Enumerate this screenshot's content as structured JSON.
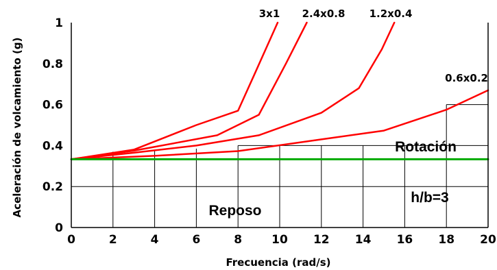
{
  "chart_data": {
    "type": "line",
    "title": "",
    "xlabel": "Frecuencia (rad/s)",
    "ylabel": "Aceleración de volcamiento (g)",
    "xlim": [
      0,
      20
    ],
    "ylim": [
      0,
      1
    ],
    "xticks": [
      0,
      2,
      4,
      6,
      8,
      10,
      12,
      14,
      16,
      18,
      20
    ],
    "yticks": [
      0,
      0.2,
      0.4,
      0.6,
      0.8,
      1
    ],
    "xtick_labels": [
      "0",
      "2",
      "4",
      "6",
      "8",
      "10",
      "12",
      "14",
      "16",
      "18",
      "20"
    ],
    "ytick_labels": [
      "0",
      "0.2",
      "0.4",
      "0.6",
      "0.8",
      "1"
    ],
    "grid": true,
    "series": [
      {
        "name": "3x1",
        "color": "#ff0000",
        "x": [
          0,
          3,
          6,
          8,
          8.8,
          9.9
        ],
        "y": [
          0.333,
          0.38,
          0.5,
          0.57,
          0.75,
          1.0
        ]
      },
      {
        "name": "2.4x0.8",
        "color": "#ff0000",
        "x": [
          0,
          3,
          7,
          9,
          10.3,
          11.3
        ],
        "y": [
          0.333,
          0.375,
          0.45,
          0.55,
          0.8,
          1.0
        ]
      },
      {
        "name": "1.2x0.4",
        "color": "#ff0000",
        "x": [
          0,
          3,
          6,
          9,
          12,
          13.8,
          14.9,
          15.5
        ],
        "y": [
          0.333,
          0.365,
          0.4,
          0.45,
          0.56,
          0.68,
          0.87,
          1.0
        ]
      },
      {
        "name": "0.6x0.2",
        "color": "#ff0000",
        "x": [
          0,
          4,
          8,
          12,
          15,
          18,
          20
        ],
        "y": [
          0.333,
          0.35,
          0.373,
          0.43,
          0.473,
          0.575,
          0.67
        ]
      },
      {
        "name": "",
        "color": "#00aa00",
        "x": [
          0,
          20
        ],
        "y": [
          0.333,
          0.333
        ]
      }
    ],
    "annotations": [
      "Rotación",
      "Reposo",
      "h/b=3"
    ]
  }
}
